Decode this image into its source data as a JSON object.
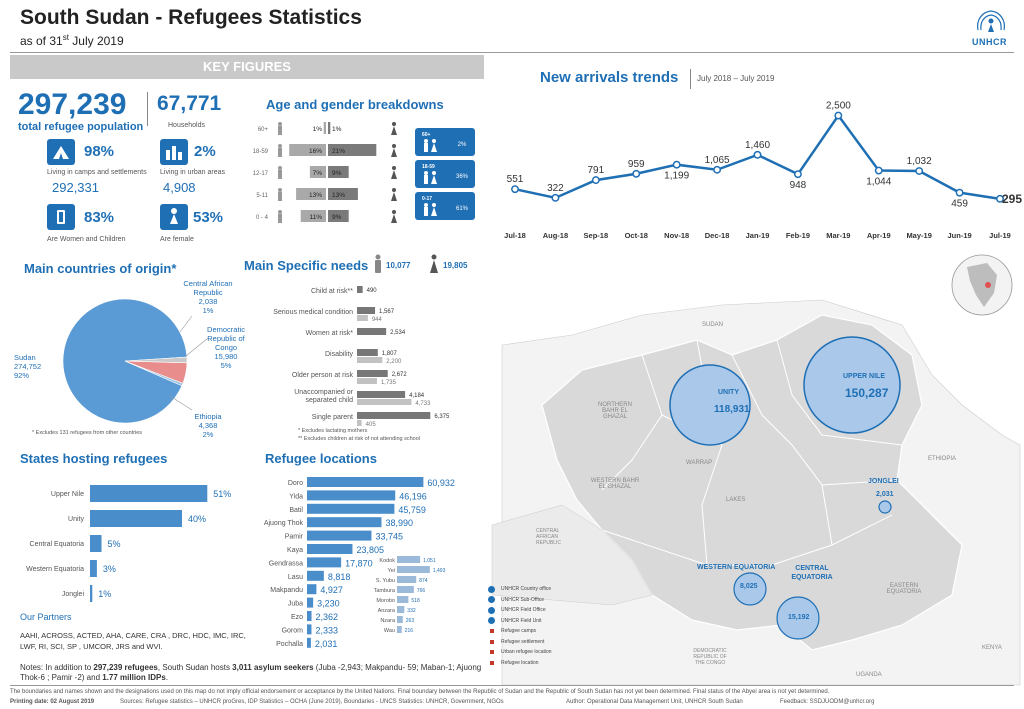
{
  "header": {
    "title": "South Sudan - Refugees Statistics",
    "subtitle_prefix": "as of 31",
    "subtitle_sup": "st",
    "subtitle_suffix": " July 2019",
    "logo_text": "UNHCR"
  },
  "key_figures": {
    "banner": "KEY FIGURES",
    "total": "297,239",
    "total_label": "total refugee population",
    "households": "67,771",
    "households_label": "Households",
    "camps_pct": "98%",
    "camps_label": "Living in camps and settlements",
    "camps_num": "292,331",
    "urban_pct": "2%",
    "urban_label": "Living in urban areas",
    "urban_num": "4,908",
    "women_children_pct": "83%",
    "women_children_label": "Are Women and Children",
    "female_pct": "53%",
    "female_label": "Are female"
  },
  "age_gender": {
    "title": "Age and gender breakdowns",
    "rows": [
      {
        "age": "60+",
        "male": "1%",
        "female": "1%"
      },
      {
        "age": "18-59",
        "male": "16%",
        "female": "21%"
      },
      {
        "age": "12-17",
        "male": "7%",
        "female": "9%"
      },
      {
        "age": "5-11",
        "male": "13%",
        "female": "13%"
      },
      {
        "age": "0 - 4",
        "male": "11%",
        "female": "9%"
      }
    ],
    "groups": [
      {
        "age": "60+",
        "pct": "2%"
      },
      {
        "age": "18-59",
        "pct": "36%"
      },
      {
        "age": "0-17",
        "pct": "61%"
      }
    ],
    "chart_data": {
      "type": "bar",
      "categories": [
        "60+",
        "18-59",
        "12-17",
        "5-11",
        "0 - 4"
      ],
      "series": [
        {
          "values": [
            1,
            16,
            7,
            13,
            11
          ]
        },
        {
          "values": [
            1,
            21,
            9,
            13,
            9
          ]
        }
      ],
      "title": "Age and gender breakdowns"
    }
  },
  "trends": {
    "title": "New arrivals trends",
    "period": "July 2018 – July 2019",
    "chart_data": {
      "type": "line",
      "categories": [
        "Jul-18",
        "Aug-18",
        "Sep-18",
        "Oct-18",
        "Nov-18",
        "Dec-18",
        "Jan-19",
        "Feb-19",
        "Mar-19",
        "Apr-19",
        "May-19",
        "Jun-19",
        "Jul-19"
      ],
      "values": [
        551,
        322,
        791,
        959,
        1199,
        1065,
        1460,
        948,
        2500,
        1044,
        1032,
        459,
        295
      ],
      "labels": [
        "551",
        "322",
        "791",
        "959",
        "1,199",
        "1,065",
        "1,460",
        "948",
        "2,500",
        "1,044",
        "1,032",
        "459",
        "295"
      ],
      "title": "New arrivals trends",
      "ylim": [
        0,
        2700
      ]
    }
  },
  "origin": {
    "title": "Main countries of origin*",
    "footnote": "* Excludes 131 refugees from other countries",
    "chart_data": {
      "type": "pie",
      "categories": [
        "Sudan",
        "Central African Republic",
        "Democratic Republic of Congo",
        "Ethiopia"
      ],
      "values": [
        274752,
        2038,
        15980,
        4368
      ],
      "labels": [
        {
          "name": "Sudan",
          "value": "274,752",
          "pct": "92%"
        },
        {
          "name": "Central African Republic",
          "value": "2,038",
          "pct": "1%"
        },
        {
          "name": "Democratic Republic of Congo",
          "value": "15,980",
          "pct": "5%"
        },
        {
          "name": "Ethiopia",
          "value": "4,368",
          "pct": "2%"
        }
      ],
      "colors": [
        "#5b9bd5",
        "#9bc3e6",
        "#e88c8c",
        "#c9c9c9"
      ]
    }
  },
  "needs": {
    "title": "Main Specific needs",
    "legend": [
      {
        "value": "10,077"
      },
      {
        "value": "19,805"
      }
    ],
    "notes": [
      "* Excludes lactating mothers",
      "** Excludes children at risk of not attending school"
    ],
    "chart_data": {
      "type": "bar",
      "categories": [
        "Child at risk**",
        "Serious medical condition",
        "Women at risk*",
        "Disability",
        "Older person at risk",
        "Unaccompanied or separated child",
        "Single parent"
      ],
      "series": [
        {
          "values": [
            490,
            1567,
            2534,
            1807,
            2672,
            4184,
            6375
          ]
        },
        {
          "values": [
            null,
            944,
            null,
            2200,
            1735,
            4733,
            405
          ]
        }
      ],
      "labels": [
        [
          "490",
          ""
        ],
        [
          "1,567",
          "944"
        ],
        [
          "2,534",
          ""
        ],
        [
          "1,807",
          "2,200"
        ],
        [
          "2,672",
          "1,735"
        ],
        [
          "4,184",
          "4,733"
        ],
        [
          "6,375",
          "405"
        ]
      ]
    }
  },
  "states": {
    "title": "States hosting refugees",
    "chart_data": {
      "type": "bar",
      "categories": [
        "Upper Nile",
        "Unity",
        "Central Equatoria",
        "Western Equatoria",
        "Jonglei"
      ],
      "values": [
        51,
        40,
        5,
        3,
        1
      ],
      "labels": [
        "51%",
        "40%",
        "5%",
        "3%",
        "1%"
      ]
    }
  },
  "locations": {
    "title": "Refugee locations",
    "chart_data": {
      "type": "bar",
      "categories": [
        "Doro",
        "Yida",
        "Batil",
        "Ajuong Thok",
        "Pamir",
        "Kaya",
        "Gendrassa",
        "Lasu",
        "Makpandu",
        "Juba",
        "Ezo",
        "Gorom",
        "Pochalla"
      ],
      "values": [
        60932,
        46196,
        45759,
        38990,
        33745,
        23805,
        17870,
        8818,
        4927,
        3230,
        2362,
        2333,
        2031
      ],
      "labels": [
        "60,932",
        "46,196",
        "45,759",
        "38,990",
        "33,745",
        "23,805",
        "17,870",
        "8,818",
        "4,927",
        "3,230",
        "2,362",
        "2,333",
        "2,031"
      ]
    },
    "small": {
      "categories": [
        "Kodok",
        "Yei",
        "S. Yubu",
        "Tambura",
        "Morobo",
        "Anzara",
        "Nzara",
        "Wau"
      ],
      "values": [
        1051,
        1493,
        874,
        766,
        518,
        332,
        263,
        216
      ],
      "labels": [
        "1,051",
        "1,493",
        "874",
        "766",
        "518",
        "332",
        "263",
        "216"
      ]
    }
  },
  "partners": {
    "title": "Our Partners",
    "text": "AAHI, ACROSS, ACTED, AHA, CARE, CRA , DRC, HDC, IMC, IRC, LWF, RI, SCI, SP , UMCOR, JRS and WVI."
  },
  "notes": {
    "prefix": "Notes: In addition to ",
    "b1": "297,239 refugees",
    "mid": ", South Sudan hosts ",
    "b2": "3,011 asylum seekers",
    "rest": " (Juba -2,943; Makpandu- 59; Maban-1; Ajuong Thok-6 ; Pamir -2) and ",
    "b3": "1.77 million IDPs",
    "end": "."
  },
  "map": {
    "unity_label": "UNITY",
    "unity_value": "118,931",
    "uppernile_label": "UPPER NILE",
    "uppernile_value": "150,287",
    "jonglei_label": "JONGLEI",
    "jonglei_value": "2,031",
    "wequatoria_label": "WESTERN EQUATORIA",
    "wequatoria_value": "8,025",
    "cequatoria_label": "CENTRAL EQUATORIA",
    "cequatoria_value": "15,192",
    "region_labels": [
      "NORTHERN BAHR EL GHAZAL",
      "WESTERN BAHR EL GHAZAL",
      "WARRAP",
      "LAKES",
      "EASTERN EQUATORIA",
      "SUDAN",
      "ETHIOPIA",
      "CENTRAL AFRICAN REPUBLIC",
      "DEMOCRATIC REPUBLIC OF THE CONGO",
      "UGANDA",
      "KENYA"
    ],
    "legend": [
      "UNHCR Country office",
      "UNHCR Sub-Office",
      "UNHCR Field Office",
      "UNHCR Field Unit",
      "Refugee camps",
      "Refugee settlement",
      "Urban refugee location",
      "Refugee location"
    ]
  },
  "footer": {
    "disclaimer": "The boundaries and names shown and the designations used on this map do not imply official endorsement or acceptance by the United Nations. Final boundary between the Republic of Sudan and the Republic of South Sudan has not yet been determined. Final status of the Abyei area is not yet determined.",
    "printing": "Printing date: 02 August 2019",
    "sources": "Sources: Refugee statistics – UNHCR proGres, IDP Statistics – OCHA (June 2019), Boundaries - UNCS Statistics: UNHCR, Government, NGOs",
    "author": "Author: Operational Data Management Unit, UNHCR South Sudan",
    "feedback": "Feedback: SSDJUODM@unhcr.org"
  },
  "colors": {
    "brand": "#1f6fb5",
    "bar": "#4a8dcb",
    "male": "#a9a9a9",
    "female": "#7a7a7a",
    "map_state": "#d9d9d9",
    "bubble": "#a9c8ea"
  }
}
